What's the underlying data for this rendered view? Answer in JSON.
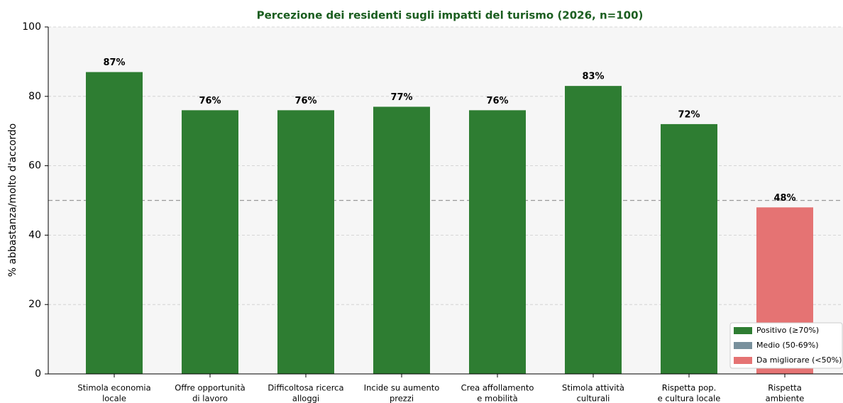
{
  "chart_data": {
    "type": "bar",
    "title": "Percezione dei residenti sugli impatti del turismo (2026, n=100)",
    "y_label": "% abbastanza/molto d'accordo",
    "categories": [
      [
        "Stimola economia",
        "locale"
      ],
      [
        "Offre opportunità",
        "di lavoro"
      ],
      [
        "Difficoltosa ricerca",
        "alloggi"
      ],
      [
        "Incide su aumento",
        "prezzi"
      ],
      [
        "Crea affollamento",
        "e mobilità"
      ],
      [
        "Stimola attività",
        "culturali"
      ],
      [
        "Rispetta pop.",
        "e cultura locale"
      ],
      [
        "Rispetta",
        "ambiente"
      ]
    ],
    "values": [
      87,
      76,
      76,
      77,
      76,
      83,
      72,
      48
    ],
    "value_labels": [
      "87%",
      "76%",
      "76%",
      "77%",
      "76%",
      "83%",
      "72%",
      "48%"
    ],
    "bar_colors": [
      "#2e7d32",
      "#2e7d32",
      "#2e7d32",
      "#2e7d32",
      "#2e7d32",
      "#2e7d32",
      "#2e7d32",
      "#e57373"
    ],
    "ylim": [
      0,
      100
    ],
    "yticks": [
      0,
      20,
      40,
      60,
      80,
      100
    ],
    "grid": true,
    "reference_line": 50,
    "legend_position": "lower right",
    "legend": [
      {
        "name": "Positivo (≥70%)",
        "color": "#2e7d32"
      },
      {
        "name": "Medio (50-69%)",
        "color": "#78909c"
      },
      {
        "name": "Da migliorare (<50%)",
        "color": "#e57373"
      }
    ]
  }
}
